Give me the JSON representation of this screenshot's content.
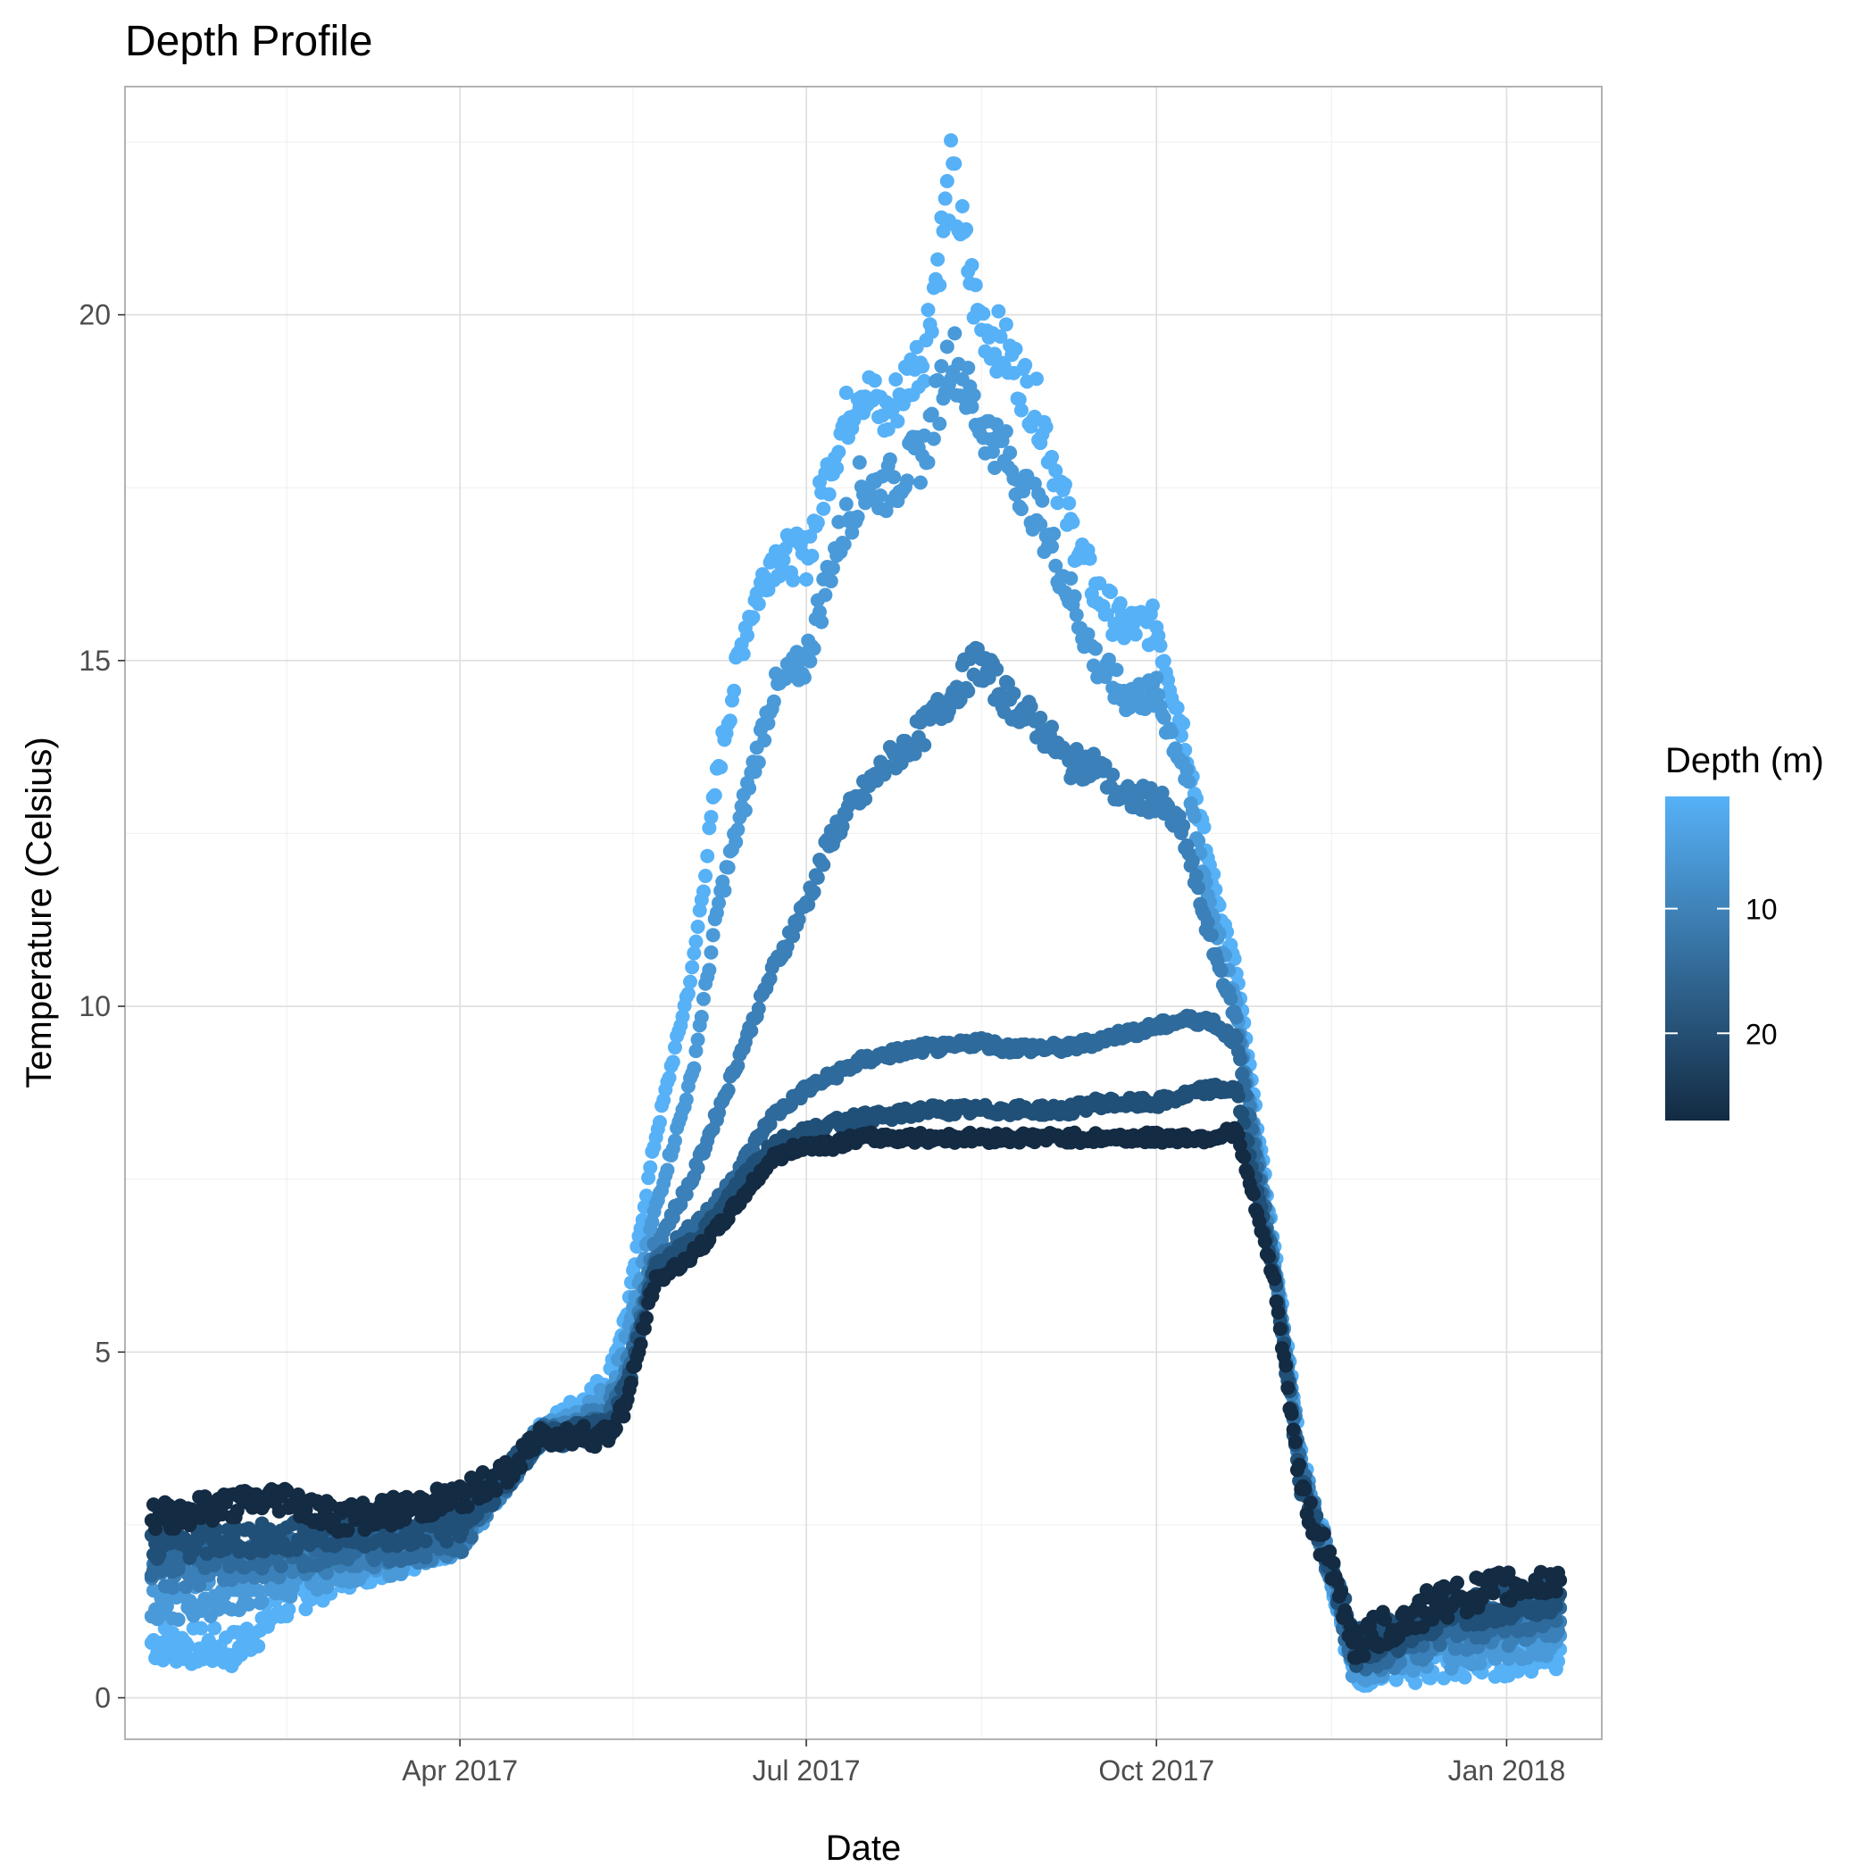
{
  "chart_data": {
    "type": "scatter",
    "title": "Depth Profile",
    "xlabel": "Date",
    "ylabel": "Temperature (Celsius)",
    "x_ticks": [
      "Apr 2017",
      "Jul 2017",
      "Oct 2017",
      "Jan 2018"
    ],
    "x_tick_values": [
      "2017-04-01",
      "2017-07-01",
      "2017-10-01",
      "2018-01-01"
    ],
    "xlim": [
      "2017-01-03",
      "2018-01-26"
    ],
    "y_ticks": [
      "0",
      "5",
      "10",
      "15",
      "20"
    ],
    "y_tick_values": [
      0,
      5,
      10,
      15,
      20
    ],
    "ylim": [
      -0.6,
      23.3
    ],
    "grid": true,
    "legend": {
      "title": "Depth (m)",
      "type": "colorbar",
      "labels": [
        "10",
        "20"
      ],
      "label_values": [
        10,
        20
      ],
      "range": [
        1,
        27
      ],
      "position": "right",
      "low_color": "#56B1F7",
      "high_color": "#132B43"
    },
    "series": [
      {
        "depth_m": 1,
        "color": "#56B1F7",
        "dates": [
          "2017-01-10",
          "2017-02-01",
          "2017-02-15",
          "2017-02-22",
          "2017-03-01",
          "2017-03-15",
          "2017-04-01",
          "2017-04-15",
          "2017-04-22",
          "2017-05-01",
          "2017-05-10",
          "2017-05-15",
          "2017-05-22",
          "2017-06-01",
          "2017-06-08",
          "2017-06-15",
          "2017-06-22",
          "2017-07-01",
          "2017-07-08",
          "2017-07-15",
          "2017-07-22",
          "2017-08-01",
          "2017-08-08",
          "2017-08-15",
          "2017-08-22",
          "2017-09-01",
          "2017-09-08",
          "2017-09-15",
          "2017-09-22",
          "2017-10-01",
          "2017-10-08",
          "2017-10-15",
          "2017-10-22",
          "2017-11-01",
          "2017-11-08",
          "2017-11-15",
          "2017-11-22",
          "2017-12-01",
          "2017-12-15",
          "2018-01-01",
          "2018-01-15"
        ],
        "values": [
          0.8,
          0.7,
          1.4,
          1.6,
          1.8,
          2.0,
          2.3,
          3.3,
          3.8,
          4.2,
          4.6,
          5.6,
          8.0,
          10.5,
          13.5,
          15.5,
          16.5,
          16.5,
          18.0,
          19.0,
          18.5,
          19.5,
          22.0,
          20.0,
          19.5,
          18.5,
          17.0,
          16.0,
          15.5,
          15.5,
          14.0,
          12.0,
          10.5,
          6.5,
          3.5,
          2.0,
          0.4,
          0.5,
          0.5,
          0.6,
          0.7
        ]
      },
      {
        "depth_m": 5,
        "color": "#4A9AD9",
        "dates": [
          "2017-01-10",
          "2017-02-01",
          "2017-02-15",
          "2017-02-22",
          "2017-03-01",
          "2017-03-15",
          "2017-04-01",
          "2017-04-15",
          "2017-04-22",
          "2017-05-01",
          "2017-05-10",
          "2017-05-15",
          "2017-05-22",
          "2017-06-01",
          "2017-06-08",
          "2017-06-15",
          "2017-06-22",
          "2017-07-01",
          "2017-07-08",
          "2017-07-15",
          "2017-07-22",
          "2017-08-01",
          "2017-08-08",
          "2017-08-15",
          "2017-08-22",
          "2017-09-01",
          "2017-09-08",
          "2017-09-15",
          "2017-09-22",
          "2017-10-01",
          "2017-10-08",
          "2017-10-15",
          "2017-10-22",
          "2017-11-01",
          "2017-11-08",
          "2017-11-15",
          "2017-11-22",
          "2017-12-01",
          "2017-12-15",
          "2018-01-01",
          "2018-01-15"
        ],
        "values": [
          1.3,
          1.5,
          1.7,
          1.8,
          1.9,
          2.0,
          2.3,
          3.3,
          3.8,
          4.0,
          4.4,
          5.2,
          7.0,
          9.0,
          11.5,
          13.0,
          14.5,
          15.0,
          16.5,
          17.5,
          17.5,
          18.0,
          19.5,
          18.5,
          18.0,
          17.0,
          16.0,
          15.0,
          14.5,
          14.5,
          13.5,
          11.5,
          10.0,
          6.3,
          3.4,
          2.0,
          0.5,
          0.6,
          0.7,
          0.8,
          0.9
        ]
      },
      {
        "depth_m": 10,
        "color": "#3B80B8",
        "dates": [
          "2017-01-10",
          "2017-02-01",
          "2017-02-15",
          "2017-02-22",
          "2017-03-01",
          "2017-03-15",
          "2017-04-01",
          "2017-04-15",
          "2017-04-22",
          "2017-05-01",
          "2017-05-10",
          "2017-05-15",
          "2017-05-22",
          "2017-06-01",
          "2017-06-08",
          "2017-06-15",
          "2017-06-22",
          "2017-07-01",
          "2017-07-08",
          "2017-07-15",
          "2017-07-22",
          "2017-08-01",
          "2017-08-08",
          "2017-08-15",
          "2017-08-22",
          "2017-09-01",
          "2017-09-08",
          "2017-09-15",
          "2017-09-22",
          "2017-10-01",
          "2017-10-08",
          "2017-10-15",
          "2017-10-22",
          "2017-11-01",
          "2017-11-08",
          "2017-11-15",
          "2017-11-22",
          "2017-12-01",
          "2017-12-15",
          "2018-01-01",
          "2018-01-15"
        ],
        "values": [
          1.8,
          1.9,
          2.0,
          2.0,
          2.1,
          2.1,
          2.3,
          3.3,
          3.8,
          3.9,
          4.2,
          4.8,
          6.5,
          7.5,
          8.5,
          9.5,
          10.5,
          11.5,
          12.5,
          13.0,
          13.5,
          14.0,
          14.5,
          15.0,
          14.5,
          14.0,
          13.5,
          13.5,
          13.0,
          13.0,
          12.5,
          11.0,
          9.8,
          6.2,
          3.3,
          2.0,
          0.6,
          0.7,
          0.9,
          1.0,
          1.1
        ]
      },
      {
        "depth_m": 15,
        "color": "#2E6A9B",
        "dates": [
          "2017-01-10",
          "2017-02-01",
          "2017-02-15",
          "2017-02-22",
          "2017-03-01",
          "2017-03-15",
          "2017-04-01",
          "2017-04-15",
          "2017-04-22",
          "2017-05-01",
          "2017-05-10",
          "2017-05-15",
          "2017-05-22",
          "2017-06-01",
          "2017-06-08",
          "2017-06-15",
          "2017-06-22",
          "2017-07-01",
          "2017-07-08",
          "2017-07-15",
          "2017-07-22",
          "2017-08-01",
          "2017-08-08",
          "2017-08-15",
          "2017-08-22",
          "2017-09-01",
          "2017-09-08",
          "2017-09-15",
          "2017-09-22",
          "2017-10-01",
          "2017-10-08",
          "2017-10-15",
          "2017-10-22",
          "2017-11-01",
          "2017-11-08",
          "2017-11-15",
          "2017-11-22",
          "2017-12-01",
          "2017-12-15",
          "2018-01-01",
          "2018-01-15"
        ],
        "values": [
          2.0,
          2.1,
          2.1,
          2.1,
          2.2,
          2.2,
          2.3,
          3.3,
          3.8,
          3.8,
          4.0,
          4.6,
          6.3,
          6.8,
          7.2,
          7.8,
          8.4,
          8.8,
          9.0,
          9.2,
          9.3,
          9.4,
          9.4,
          9.5,
          9.4,
          9.4,
          9.4,
          9.5,
          9.6,
          9.7,
          9.8,
          9.8,
          9.5,
          6.2,
          3.2,
          2.0,
          0.6,
          0.8,
          1.0,
          1.2,
          1.3
        ]
      },
      {
        "depth_m": 20,
        "color": "#205078",
        "dates": [
          "2017-01-10",
          "2017-02-01",
          "2017-02-15",
          "2017-02-22",
          "2017-03-01",
          "2017-03-15",
          "2017-04-01",
          "2017-04-15",
          "2017-04-22",
          "2017-05-01",
          "2017-05-10",
          "2017-05-15",
          "2017-05-22",
          "2017-06-01",
          "2017-06-08",
          "2017-06-15",
          "2017-06-22",
          "2017-07-01",
          "2017-07-08",
          "2017-07-15",
          "2017-07-22",
          "2017-08-01",
          "2017-08-08",
          "2017-08-15",
          "2017-08-22",
          "2017-09-01",
          "2017-09-08",
          "2017-09-15",
          "2017-09-22",
          "2017-10-01",
          "2017-10-08",
          "2017-10-15",
          "2017-10-22",
          "2017-11-01",
          "2017-11-08",
          "2017-11-15",
          "2017-11-22",
          "2017-12-01",
          "2017-12-15",
          "2018-01-01",
          "2018-01-15"
        ],
        "values": [
          2.2,
          2.3,
          2.3,
          2.4,
          2.4,
          2.4,
          2.5,
          3.3,
          3.8,
          3.8,
          3.9,
          4.5,
          6.2,
          6.6,
          7.0,
          7.6,
          8.0,
          8.2,
          8.3,
          8.4,
          8.4,
          8.5,
          8.5,
          8.5,
          8.5,
          8.5,
          8.5,
          8.6,
          8.6,
          8.6,
          8.7,
          8.8,
          8.8,
          6.1,
          3.1,
          2.0,
          0.7,
          0.9,
          1.2,
          1.4,
          1.5
        ]
      },
      {
        "depth_m": 27,
        "color": "#132B43",
        "dates": [
          "2017-01-10",
          "2017-02-01",
          "2017-02-15",
          "2017-02-22",
          "2017-03-01",
          "2017-03-15",
          "2017-04-01",
          "2017-04-15",
          "2017-04-22",
          "2017-05-01",
          "2017-05-10",
          "2017-05-15",
          "2017-05-22",
          "2017-06-01",
          "2017-06-08",
          "2017-06-15",
          "2017-06-22",
          "2017-07-01",
          "2017-07-08",
          "2017-07-15",
          "2017-07-22",
          "2017-08-01",
          "2017-08-08",
          "2017-08-15",
          "2017-08-22",
          "2017-09-01",
          "2017-09-08",
          "2017-09-15",
          "2017-09-22",
          "2017-10-01",
          "2017-10-08",
          "2017-10-15",
          "2017-10-22",
          "2017-11-01",
          "2017-11-08",
          "2017-11-15",
          "2017-11-22",
          "2017-12-01",
          "2017-12-15",
          "2018-01-01",
          "2018-01-15"
        ],
        "values": [
          2.6,
          2.8,
          2.9,
          2.7,
          2.6,
          2.7,
          2.9,
          3.3,
          3.8,
          3.8,
          3.8,
          4.3,
          6.0,
          6.4,
          6.8,
          7.3,
          7.8,
          8.0,
          8.0,
          8.1,
          8.1,
          8.1,
          8.1,
          8.1,
          8.1,
          8.1,
          8.1,
          8.1,
          8.1,
          8.1,
          8.1,
          8.1,
          8.2,
          6.0,
          3.0,
          2.0,
          0.8,
          1.0,
          1.4,
          1.6,
          1.7
        ]
      }
    ]
  }
}
